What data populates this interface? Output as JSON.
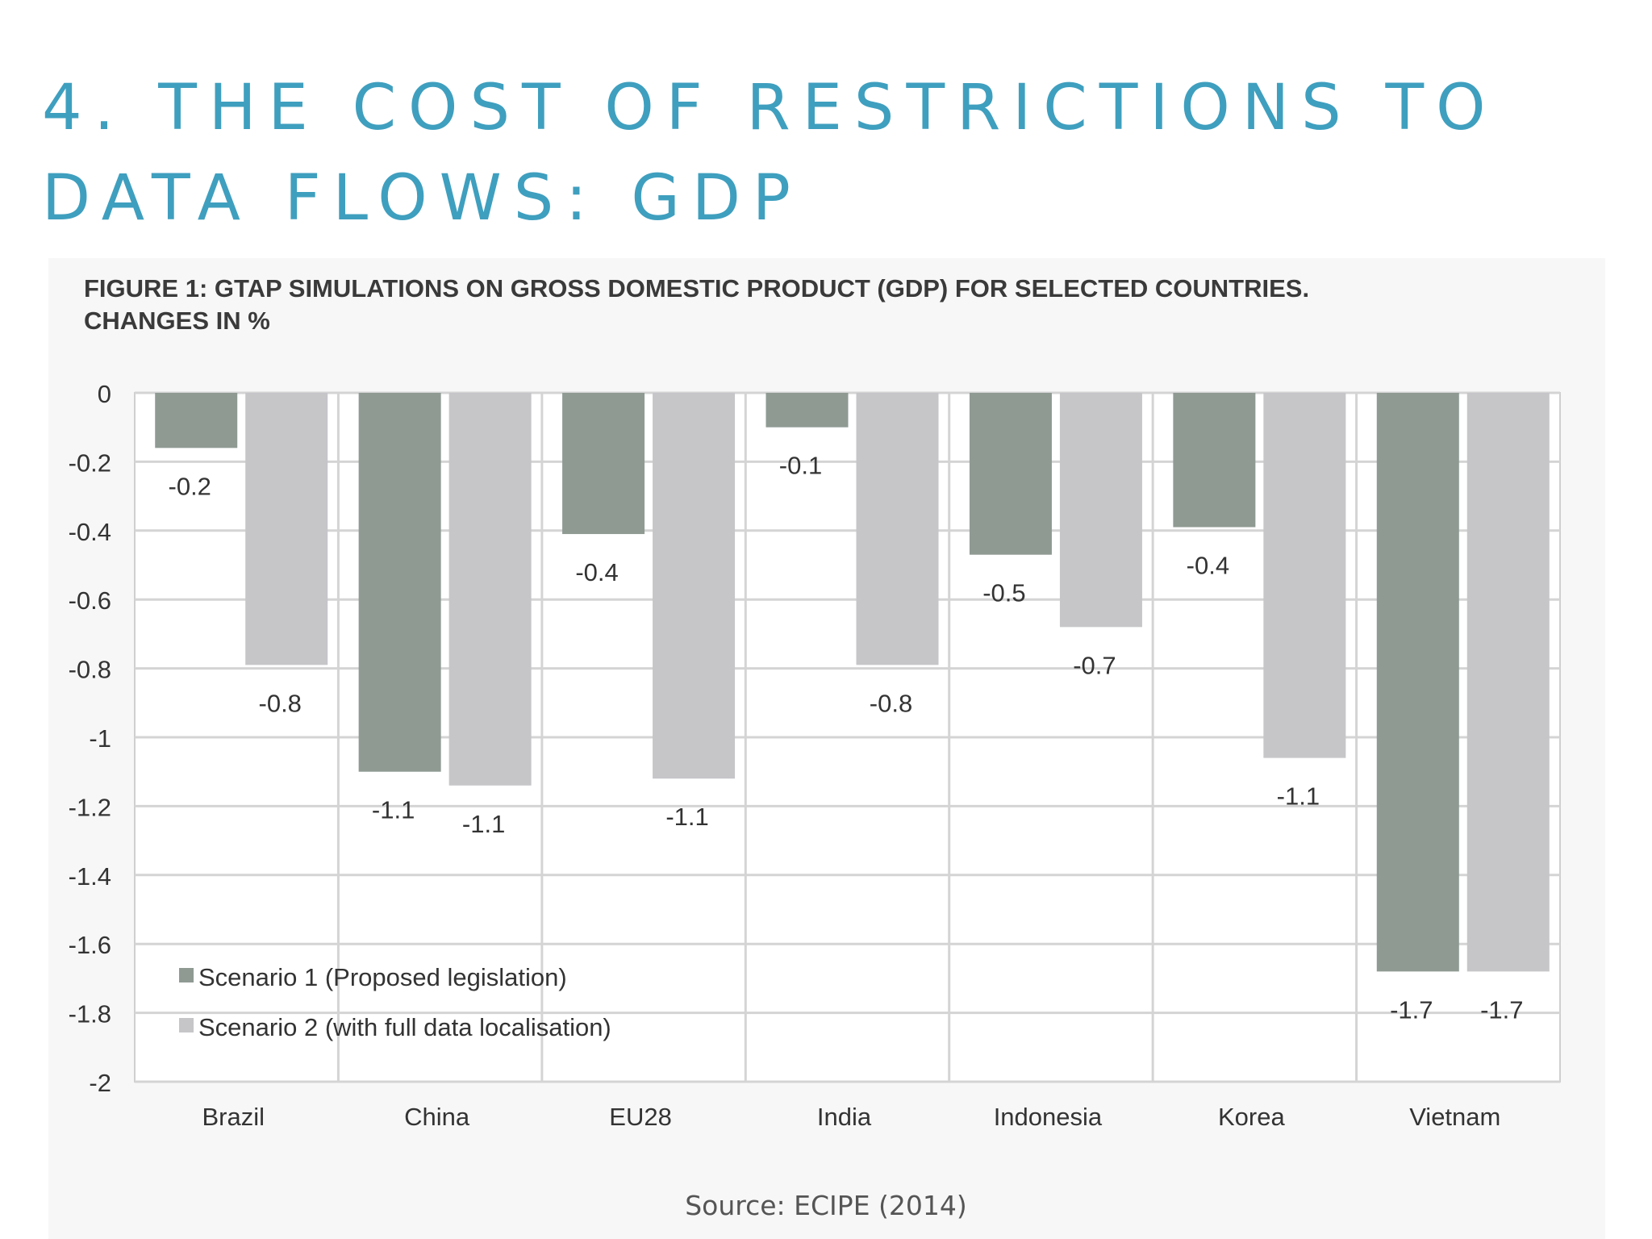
{
  "slide": {
    "title_line1": "4. THE COST OF RESTRICTIONS TO",
    "title_line2": "DATA FLOWS: GDP",
    "source": "Source: ECIPE (2014)"
  },
  "figure": {
    "caption_line1": "FIGURE 1: GTAP SIMULATIONS ON GROSS DOMESTIC PRODUCT (GDP) FOR SELECTED COUNTRIES.",
    "caption_line2": "CHANGES IN %"
  },
  "chart_data": {
    "type": "bar",
    "title": "FIGURE 1: GTAP SIMULATIONS ON GROSS DOMESTIC PRODUCT (GDP) FOR SELECTED COUNTRIES. CHANGES IN %",
    "categories": [
      "Brazil",
      "China",
      "EU28",
      "India",
      "Indonesia",
      "Korea",
      "Vietnam"
    ],
    "series": [
      {
        "name": "Scenario 1 (Proposed legislation)",
        "color": "#8f9a93",
        "values": [
          -0.16,
          -1.1,
          -0.41,
          -0.1,
          -0.47,
          -0.39,
          -1.68
        ],
        "labels": [
          "-0.2",
          "-1.1",
          "-0.4",
          "-0.1",
          "-0.5",
          "-0.4",
          "-1.7"
        ]
      },
      {
        "name": "Scenario 2 (with full data localisation)",
        "color": "#c6c5c8",
        "values": [
          -0.79,
          -1.14,
          -1.12,
          -0.79,
          -0.68,
          -1.06,
          -1.68
        ],
        "labels": [
          "-0.8",
          "-1.1",
          "-1.1",
          "-0.8",
          "-0.7",
          "-1.1",
          "-1.7"
        ]
      }
    ],
    "y_ticks": [
      "0",
      "-0.2",
      "-0.4",
      "-0.6",
      "-0.8",
      "-1",
      "-1.2",
      "-1.4",
      "-1.6",
      "-1.8",
      "-2"
    ],
    "ylim": [
      -2,
      0
    ],
    "xlabel": "",
    "ylabel": "",
    "grid": true,
    "legend_position": "bottom-left"
  }
}
